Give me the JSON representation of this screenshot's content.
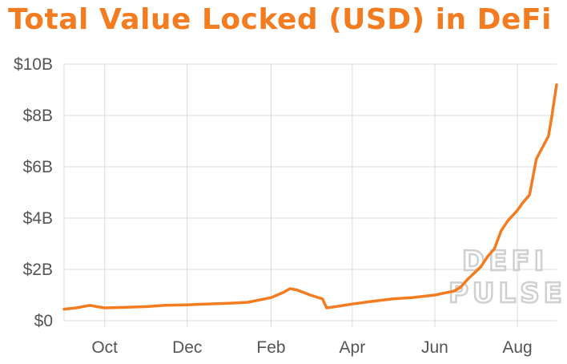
{
  "title": "Total Value Locked (USD) in DeFi",
  "watermark": [
    "DEFI",
    "PULSE"
  ],
  "colors": {
    "accent": "#f47c20",
    "grid": "#dcdcdc",
    "tick_text": "#555555"
  },
  "chart_data": {
    "type": "line",
    "title": "Total Value Locked (USD) in DeFi",
    "ylim": [
      0,
      10
    ],
    "y_ticks": [
      {
        "value": 0,
        "label": "$0"
      },
      {
        "value": 2,
        "label": "$2B"
      },
      {
        "value": 4,
        "label": "$4B"
      },
      {
        "value": 6,
        "label": "$6B"
      },
      {
        "value": 8,
        "label": "$8B"
      },
      {
        "value": 10,
        "label": "$10B"
      }
    ],
    "xlim": [
      "2019-09-01",
      "2020-08-30"
    ],
    "x_ticks": [
      {
        "date": "2019-10-01",
        "label": "Oct"
      },
      {
        "date": "2019-12-01",
        "label": "Dec"
      },
      {
        "date": "2020-02-01",
        "label": "Feb"
      },
      {
        "date": "2020-04-01",
        "label": "Apr"
      },
      {
        "date": "2020-06-01",
        "label": "Jun"
      },
      {
        "date": "2020-08-01",
        "label": "Aug"
      }
    ],
    "grid": true,
    "series": [
      {
        "x": [
          "2019-09-01",
          "2019-09-10",
          "2019-09-20",
          "2019-09-25",
          "2019-10-01",
          "2019-10-15",
          "2019-11-01",
          "2019-11-15",
          "2019-12-01",
          "2019-12-15",
          "2020-01-01",
          "2020-01-15",
          "2020-02-01",
          "2020-02-10",
          "2020-02-15",
          "2020-02-20",
          "2020-03-01",
          "2020-03-10",
          "2020-03-13",
          "2020-03-20",
          "2020-04-01",
          "2020-04-15",
          "2020-05-01",
          "2020-05-15",
          "2020-06-01",
          "2020-06-10",
          "2020-06-15",
          "2020-06-20",
          "2020-06-25",
          "2020-07-01",
          "2020-07-05",
          "2020-07-10",
          "2020-07-15",
          "2020-07-20",
          "2020-07-25",
          "2020-08-01",
          "2020-08-05",
          "2020-08-10",
          "2020-08-15",
          "2020-08-18",
          "2020-08-20",
          "2020-08-22",
          "2020-08-24",
          "2020-08-26",
          "2020-08-28",
          "2020-08-30"
        ],
        "y": [
          0.45,
          0.5,
          0.6,
          0.55,
          0.5,
          0.52,
          0.55,
          0.6,
          0.62,
          0.65,
          0.68,
          0.72,
          0.9,
          1.1,
          1.25,
          1.2,
          1.0,
          0.85,
          0.5,
          0.55,
          0.65,
          0.75,
          0.85,
          0.9,
          1.0,
          1.1,
          1.15,
          1.3,
          1.6,
          1.9,
          2.1,
          2.5,
          2.8,
          3.5,
          3.9,
          4.3,
          4.6,
          4.9,
          6.3,
          6.6,
          6.8,
          7.0,
          7.2,
          7.8,
          8.5,
          9.2
        ]
      }
    ]
  }
}
